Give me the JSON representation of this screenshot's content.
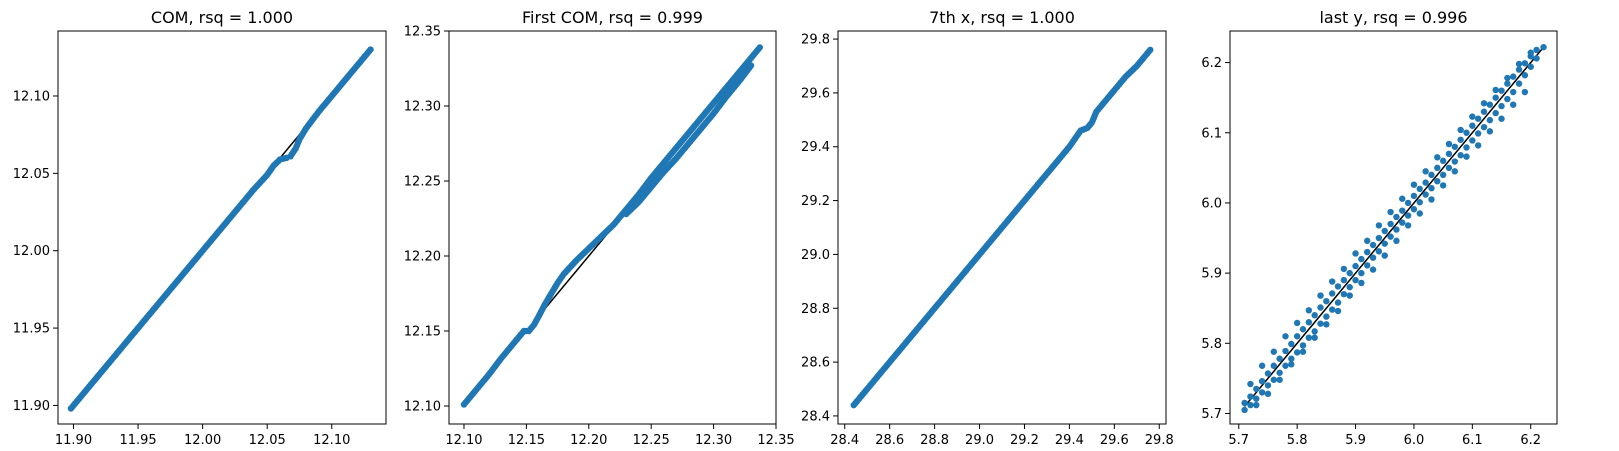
{
  "chart_data": [
    {
      "type": "scatter",
      "title": "COM, rsq =  1.000",
      "xlim": [
        11.888,
        12.142
      ],
      "ylim": [
        11.888,
        12.142
      ],
      "xticks": [
        11.9,
        11.95,
        12.0,
        12.05,
        12.1
      ],
      "yticks": [
        11.9,
        11.95,
        12.0,
        12.05,
        12.1
      ],
      "xtick_labels": [
        "11.90",
        "11.95",
        "12.00",
        "12.05",
        "12.10"
      ],
      "ytick_labels": [
        "11.90",
        "11.95",
        "12.00",
        "12.05",
        "12.10"
      ],
      "fit_line": [
        [
          11.898,
          11.898
        ],
        [
          12.13,
          12.13
        ]
      ],
      "series": [
        {
          "points": [
            [
              11.898,
              11.898
            ],
            [
              11.92,
              11.92
            ],
            [
              11.94,
              11.94
            ],
            [
              11.96,
              11.96
            ],
            [
              11.98,
              11.98
            ],
            [
              12.0,
              12.0
            ],
            [
              12.02,
              12.02
            ],
            [
              12.04,
              12.04
            ],
            [
              12.05,
              12.049
            ],
            [
              12.055,
              12.055
            ],
            [
              12.06,
              12.059
            ],
            [
              12.065,
              12.06
            ],
            [
              12.068,
              12.061
            ],
            [
              12.072,
              12.066
            ],
            [
              12.075,
              12.072
            ],
            [
              12.08,
              12.079
            ],
            [
              12.09,
              12.09
            ],
            [
              12.1,
              12.1
            ],
            [
              12.11,
              12.11
            ],
            [
              12.12,
              12.12
            ],
            [
              12.13,
              12.13
            ]
          ]
        }
      ]
    },
    {
      "type": "scatter",
      "title": "First COM, rsq =  0.999",
      "xlim": [
        12.088,
        12.35
      ],
      "ylim": [
        12.088,
        12.35
      ],
      "xticks": [
        12.1,
        12.15,
        12.2,
        12.25,
        12.3,
        12.35
      ],
      "yticks": [
        12.1,
        12.15,
        12.2,
        12.25,
        12.3,
        12.35
      ],
      "xtick_labels": [
        "12.10",
        "12.15",
        "12.20",
        "12.25",
        "12.30",
        "12.35"
      ],
      "ytick_labels": [
        "12.10",
        "12.15",
        "12.20",
        "12.25",
        "12.30",
        "12.35"
      ],
      "fit_line": [
        [
          12.1,
          12.1
        ],
        [
          12.338,
          12.338
        ]
      ],
      "series": [
        {
          "points": [
            [
              12.1,
              12.101
            ],
            [
              12.11,
              12.111
            ],
            [
              12.12,
              12.121
            ],
            [
              12.13,
              12.132
            ],
            [
              12.14,
              12.142
            ],
            [
              12.148,
              12.15
            ],
            [
              12.152,
              12.15
            ],
            [
              12.156,
              12.154
            ],
            [
              12.16,
              12.16
            ],
            [
              12.165,
              12.168
            ],
            [
              12.17,
              12.175
            ],
            [
              12.175,
              12.182
            ],
            [
              12.18,
              12.188
            ],
            [
              12.19,
              12.197
            ],
            [
              12.2,
              12.205
            ],
            [
              12.21,
              12.213
            ],
            [
              12.22,
              12.221
            ],
            [
              12.23,
              12.231
            ],
            [
              12.24,
              12.241
            ],
            [
              12.25,
              12.252
            ],
            [
              12.26,
              12.262
            ],
            [
              12.27,
              12.272
            ],
            [
              12.28,
              12.282
            ],
            [
              12.29,
              12.292
            ],
            [
              12.3,
              12.302
            ],
            [
              12.31,
              12.312
            ],
            [
              12.32,
              12.322
            ],
            [
              12.33,
              12.332
            ],
            [
              12.337,
              12.339
            ]
          ]
        },
        {
          "points": [
            [
              12.23,
              12.228
            ],
            [
              12.24,
              12.236
            ],
            [
              12.25,
              12.246
            ],
            [
              12.26,
              12.256
            ],
            [
              12.27,
              12.265
            ],
            [
              12.28,
              12.275
            ],
            [
              12.29,
              12.285
            ],
            [
              12.3,
              12.295
            ],
            [
              12.31,
              12.306
            ],
            [
              12.32,
              12.316
            ],
            [
              12.33,
              12.327
            ]
          ]
        }
      ]
    },
    {
      "type": "scatter",
      "title": "7th x, rsq =  1.000",
      "xlim": [
        28.37,
        29.83
      ],
      "ylim": [
        28.37,
        29.83
      ],
      "xticks": [
        28.4,
        28.6,
        28.8,
        29.0,
        29.2,
        29.4,
        29.6,
        29.8
      ],
      "yticks": [
        28.4,
        28.6,
        28.8,
        29.0,
        29.2,
        29.4,
        29.6,
        29.8
      ],
      "xtick_labels": [
        "28.4",
        "28.6",
        "28.8",
        "29.0",
        "29.2",
        "29.4",
        "29.6",
        "29.8"
      ],
      "ytick_labels": [
        "28.4",
        "28.6",
        "28.8",
        "29.0",
        "29.2",
        "29.4",
        "29.6",
        "29.8"
      ],
      "fit_line": [
        [
          28.44,
          28.44
        ],
        [
          29.76,
          29.76
        ]
      ],
      "series": [
        {
          "points": [
            [
              28.44,
              28.44
            ],
            [
              28.5,
              28.5
            ],
            [
              28.6,
              28.6
            ],
            [
              28.7,
              28.7
            ],
            [
              28.8,
              28.8
            ],
            [
              28.9,
              28.9
            ],
            [
              29.0,
              29.0
            ],
            [
              29.1,
              29.1
            ],
            [
              29.2,
              29.2
            ],
            [
              29.3,
              29.3
            ],
            [
              29.4,
              29.4
            ],
            [
              29.45,
              29.46
            ],
            [
              29.48,
              29.47
            ],
            [
              29.5,
              29.49
            ],
            [
              29.52,
              29.53
            ],
            [
              29.55,
              29.56
            ],
            [
              29.6,
              29.61
            ],
            [
              29.65,
              29.66
            ],
            [
              29.7,
              29.7
            ],
            [
              29.76,
              29.76
            ]
          ]
        }
      ]
    },
    {
      "type": "scatter",
      "title": "last y, rsq =  0.996",
      "xlim": [
        5.685,
        6.245
      ],
      "ylim": [
        5.685,
        6.245
      ],
      "xticks": [
        5.7,
        5.8,
        5.9,
        6.0,
        6.1,
        6.2
      ],
      "yticks": [
        5.7,
        5.8,
        5.9,
        6.0,
        6.1,
        6.2
      ],
      "xtick_labels": [
        "5.7",
        "5.8",
        "5.9",
        "6.0",
        "6.1",
        "6.2"
      ],
      "ytick_labels": [
        "5.7",
        "5.8",
        "5.9",
        "6.0",
        "6.1",
        "6.2"
      ],
      "fit_line": [
        [
          5.71,
          5.71
        ],
        [
          6.222,
          6.222
        ]
      ],
      "series": [
        {
          "points": [
            [
              5.71,
              5.715
            ],
            [
              5.72,
              5.724
            ],
            [
              5.73,
              5.735
            ],
            [
              5.74,
              5.746
            ],
            [
              5.75,
              5.757
            ],
            [
              5.76,
              5.768
            ],
            [
              5.77,
              5.778
            ],
            [
              5.78,
              5.789
            ],
            [
              5.79,
              5.799
            ],
            [
              5.8,
              5.81
            ],
            [
              5.81,
              5.82
            ],
            [
              5.82,
              5.83
            ],
            [
              5.83,
              5.84
            ],
            [
              5.84,
              5.851
            ],
            [
              5.85,
              5.86
            ],
            [
              5.86,
              5.871
            ],
            [
              5.87,
              5.881
            ],
            [
              5.88,
              5.89
            ],
            [
              5.89,
              5.9
            ],
            [
              5.9,
              5.91
            ],
            [
              5.91,
              5.92
            ],
            [
              5.92,
              5.93
            ],
            [
              5.93,
              5.94
            ],
            [
              5.94,
              5.95
            ],
            [
              5.95,
              5.96
            ],
            [
              5.96,
              5.97
            ],
            [
              5.97,
              5.98
            ],
            [
              5.98,
              5.989
            ],
            [
              5.99,
              6.0
            ],
            [
              6.0,
              6.01
            ],
            [
              6.01,
              6.02
            ],
            [
              6.02,
              6.029
            ],
            [
              6.03,
              6.04
            ],
            [
              6.04,
              6.05
            ],
            [
              6.05,
              6.06
            ],
            [
              6.06,
              6.07
            ],
            [
              6.07,
              6.08
            ],
            [
              6.08,
              6.09
            ],
            [
              6.09,
              6.1
            ],
            [
              6.1,
              6.11
            ],
            [
              6.11,
              6.12
            ],
            [
              6.12,
              6.13
            ],
            [
              6.13,
              6.14
            ],
            [
              6.14,
              6.15
            ],
            [
              6.15,
              6.16
            ],
            [
              6.16,
              6.17
            ],
            [
              6.17,
              6.18
            ],
            [
              6.18,
              6.19
            ],
            [
              6.19,
              6.199
            ],
            [
              6.2,
              6.209
            ],
            [
              6.21,
              6.218
            ],
            [
              6.222,
              6.222
            ]
          ]
        },
        {
          "points": [
            [
              5.71,
              5.705
            ],
            [
              5.72,
              5.712
            ],
            [
              5.73,
              5.721
            ],
            [
              5.74,
              5.73
            ],
            [
              5.75,
              5.74
            ],
            [
              5.76,
              5.748
            ],
            [
              5.77,
              5.758
            ],
            [
              5.78,
              5.768
            ],
            [
              5.79,
              5.778
            ],
            [
              5.8,
              5.787
            ],
            [
              5.81,
              5.797
            ],
            [
              5.82,
              5.808
            ],
            [
              5.83,
              5.817
            ],
            [
              5.84,
              5.828
            ],
            [
              5.85,
              5.838
            ],
            [
              5.86,
              5.848
            ],
            [
              5.87,
              5.858
            ],
            [
              5.88,
              5.87
            ],
            [
              5.89,
              5.88
            ],
            [
              5.9,
              5.89
            ],
            [
              5.91,
              5.9
            ],
            [
              5.92,
              5.911
            ],
            [
              5.93,
              5.922
            ],
            [
              5.94,
              5.931
            ],
            [
              5.95,
              5.942
            ],
            [
              5.96,
              5.952
            ],
            [
              5.97,
              5.962
            ],
            [
              5.98,
              5.972
            ],
            [
              5.99,
              5.982
            ],
            [
              6.0,
              5.991
            ],
            [
              6.01,
              6.001
            ],
            [
              6.02,
              6.012
            ],
            [
              6.03,
              6.021
            ],
            [
              6.04,
              6.031
            ],
            [
              6.05,
              6.04
            ],
            [
              6.06,
              6.05
            ],
            [
              6.07,
              6.059
            ],
            [
              6.08,
              6.068
            ],
            [
              6.09,
              6.079
            ],
            [
              6.1,
              6.089
            ],
            [
              6.11,
              6.099
            ],
            [
              6.12,
              6.108
            ],
            [
              6.13,
              6.118
            ],
            [
              6.14,
              6.128
            ],
            [
              6.15,
              6.138
            ],
            [
              6.16,
              6.148
            ],
            [
              6.17,
              6.158
            ],
            [
              6.18,
              6.17
            ],
            [
              6.19,
              6.182
            ],
            [
              6.2,
              6.194
            ],
            [
              6.21,
              6.206
            ]
          ]
        },
        {
          "points": [
            [
              5.72,
              5.742
            ],
            [
              5.74,
              5.768
            ],
            [
              5.76,
              5.788
            ],
            [
              5.78,
              5.81
            ],
            [
              5.8,
              5.829
            ],
            [
              5.82,
              5.847
            ],
            [
              5.84,
              5.868
            ],
            [
              5.86,
              5.888
            ],
            [
              5.88,
              5.906
            ],
            [
              5.9,
              5.928
            ],
            [
              5.92,
              5.946
            ],
            [
              5.94,
              5.968
            ],
            [
              5.96,
              5.987
            ],
            [
              5.98,
              6.006
            ],
            [
              6.0,
              6.026
            ],
            [
              6.02,
              6.045
            ],
            [
              6.04,
              6.065
            ],
            [
              6.06,
              6.084
            ],
            [
              6.08,
              6.104
            ],
            [
              6.1,
              6.123
            ],
            [
              6.12,
              6.142
            ],
            [
              6.14,
              6.161
            ],
            [
              6.16,
              6.178
            ],
            [
              6.18,
              6.198
            ],
            [
              6.2,
              6.214
            ]
          ]
        },
        {
          "points": [
            [
              5.73,
              5.712
            ],
            [
              5.75,
              5.728
            ],
            [
              5.77,
              5.748
            ],
            [
              5.79,
              5.77
            ],
            [
              5.81,
              5.788
            ],
            [
              5.83,
              5.808
            ],
            [
              5.85,
              5.827
            ],
            [
              5.87,
              5.846
            ],
            [
              5.89,
              5.868
            ],
            [
              5.91,
              5.886
            ],
            [
              5.93,
              5.905
            ],
            [
              5.95,
              5.925
            ],
            [
              5.97,
              5.946
            ],
            [
              5.99,
              5.968
            ],
            [
              6.01,
              5.985
            ],
            [
              6.03,
              6.005
            ],
            [
              6.05,
              6.025
            ],
            [
              6.07,
              6.045
            ],
            [
              6.09,
              6.066
            ],
            [
              6.11,
              6.082
            ],
            [
              6.13,
              6.102
            ],
            [
              6.15,
              6.12
            ],
            [
              6.17,
              6.14
            ],
            [
              6.19,
              6.158
            ]
          ]
        }
      ]
    }
  ]
}
